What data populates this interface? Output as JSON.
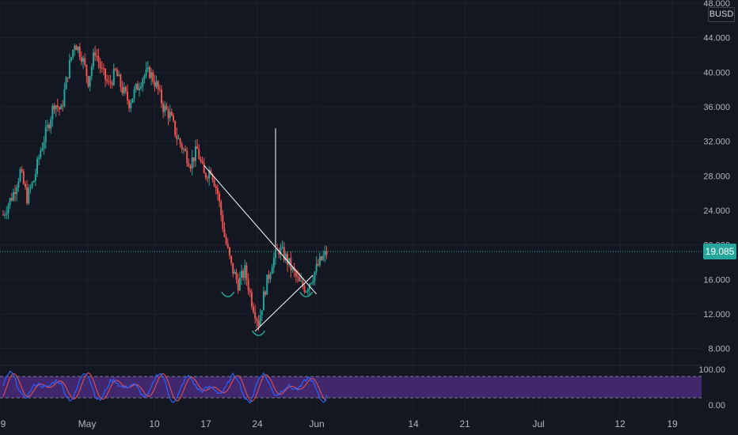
{
  "currency": "BUSD",
  "last_price": "19.085",
  "colors": {
    "background": "#131722",
    "grid": "#1e222d",
    "up": "#26a69a",
    "down": "#ef5350",
    "drawing": "#ffffff",
    "osc_k": "#2962ff",
    "osc_d": "#ef5350",
    "osc_band": "#4a2a7a",
    "text": "#b2b5be"
  },
  "chart_data": {
    "type": "candlestick",
    "interval_days": 1,
    "ylim": [
      6.5,
      48
    ],
    "y_ticks": [
      "48.000",
      "44.000",
      "40.000",
      "36.000",
      "32.000",
      "28.000",
      "24.000",
      "20.000",
      "16.000",
      "12.000",
      "8.000"
    ],
    "x_ticks": [
      "9",
      "May",
      "10",
      "17",
      "24",
      "Jun",
      "14",
      "21",
      "Jul",
      "12",
      "19"
    ],
    "series_close_path": [
      [
        0,
        23.5
      ],
      [
        3,
        26
      ],
      [
        5,
        28.5
      ],
      [
        7,
        25.5
      ],
      [
        9,
        27.5
      ],
      [
        11,
        31
      ],
      [
        13,
        33.5
      ],
      [
        15,
        36.5
      ],
      [
        17,
        35.5
      ],
      [
        19,
        40
      ],
      [
        21,
        43.5
      ],
      [
        23,
        42
      ],
      [
        25,
        39
      ],
      [
        27,
        42.5
      ],
      [
        29,
        40
      ],
      [
        31,
        38.5
      ],
      [
        33,
        40
      ],
      [
        35,
        38
      ],
      [
        37,
        36.5
      ],
      [
        39,
        38
      ],
      [
        41,
        39.5
      ],
      [
        43,
        40
      ],
      [
        45,
        38.5
      ],
      [
        47,
        36
      ],
      [
        49,
        35
      ],
      [
        51,
        32.5
      ],
      [
        53,
        31
      ],
      [
        55,
        29.5
      ],
      [
        57,
        31
      ],
      [
        59,
        28
      ],
      [
        61,
        28.8
      ],
      [
        63,
        26
      ],
      [
        65,
        21
      ],
      [
        67,
        17.5
      ],
      [
        69,
        15.5
      ],
      [
        71,
        17
      ],
      [
        73,
        13.5
      ],
      [
        75,
        11
      ],
      [
        77,
        15
      ],
      [
        79,
        18
      ],
      [
        81,
        19.5
      ],
      [
        83,
        18.5
      ],
      [
        85,
        17
      ],
      [
        87,
        15.5
      ],
      [
        89,
        15
      ],
      [
        91,
        16.5
      ],
      [
        93,
        18
      ],
      [
        95,
        19.1
      ]
    ],
    "stoch_ylim": [
      0,
      100
    ],
    "stoch_ticks": [
      "100.00",
      "0.00"
    ],
    "stoch_band": [
      20,
      80
    ],
    "drawings": {
      "triangle_upper": [
        [
          59,
          29.2
        ],
        [
          92,
          14.3
        ]
      ],
      "triangle_lower": [
        [
          74,
          10.0
        ],
        [
          91,
          16.5
        ]
      ],
      "target_line": [
        [
          80,
          33.5
        ],
        [
          80,
          19.8
        ]
      ]
    }
  }
}
